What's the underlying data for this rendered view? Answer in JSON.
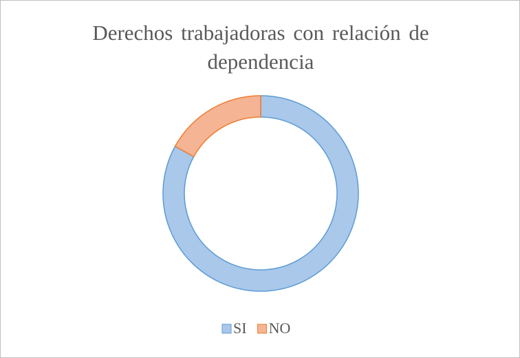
{
  "chart_data": {
    "type": "donut",
    "title": "Derechos trabajadoras con relación de dependencia",
    "categories": [
      "SI",
      "NO"
    ],
    "values": [
      83,
      17
    ],
    "colors": [
      "#a9c8ea",
      "#f5b493"
    ],
    "strokes": [
      "#5b9bd5",
      "#ed7d31"
    ],
    "legend": "bottom"
  }
}
